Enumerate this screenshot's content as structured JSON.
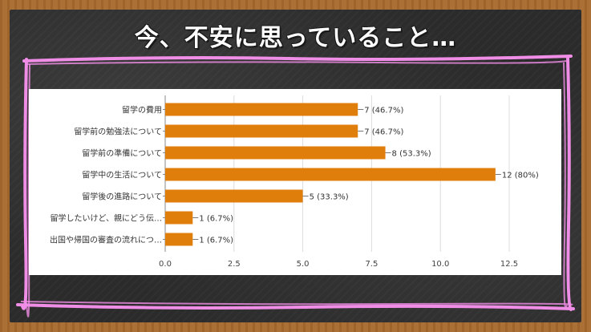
{
  "header": {
    "title": "今、不安に思っていること…"
  },
  "colors": {
    "bar": "#e07e0c",
    "chalk": "#f08de6",
    "board": "#2b2b2b",
    "frame": "#a86a2e"
  },
  "chart_data": {
    "type": "bar",
    "orientation": "horizontal",
    "categories": [
      "留学の費用",
      "留学前の勉強法について",
      "留学前の準備について",
      "留学中の生活について",
      "留学後の進路について",
      "留学したいけど、親にどう伝…",
      "出国や帰国の審査の流れにつ…"
    ],
    "values": [
      7,
      7,
      8,
      12,
      5,
      1,
      1
    ],
    "labels": [
      "7 (46.7%)",
      "7 (46.7%)",
      "8 (53.3%)",
      "12 (80%)",
      "5 (33.3%)",
      "1 (6.7%)",
      "1 (6.7%)"
    ],
    "x_ticks": [
      "0.0",
      "2.5",
      "5.0",
      "7.5",
      "10.0",
      "12.5"
    ],
    "xlim": [
      0,
      12.5
    ],
    "grid": true
  }
}
